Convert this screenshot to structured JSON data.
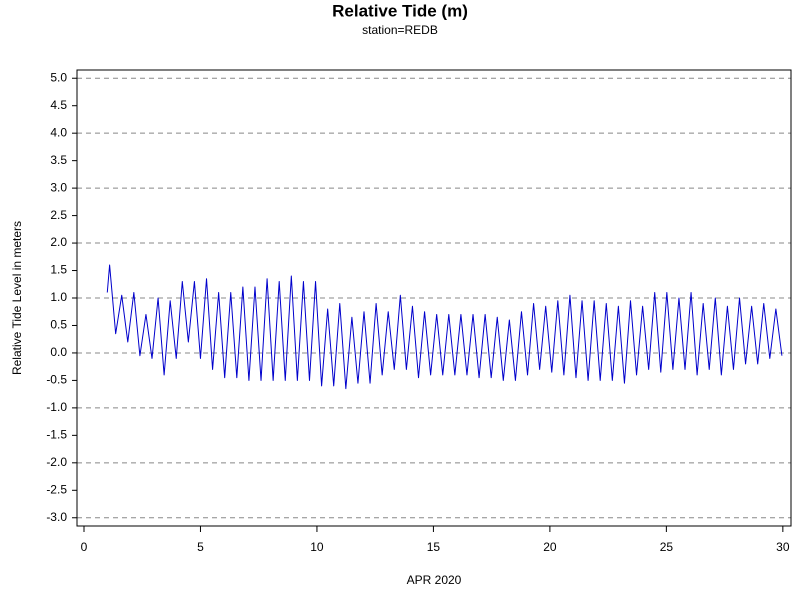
{
  "chart_data": {
    "type": "line",
    "title": "Relative Tide (m)",
    "subtitle": "station=REDB",
    "x_label": "APR 2020",
    "y_label": "Relative Tide Level in meters",
    "xlim": [
      -0.3,
      30.35
    ],
    "ylim": [
      -3.15,
      5.15
    ],
    "xticks": [
      0,
      5,
      10,
      15,
      20,
      25,
      30
    ],
    "yticks": [
      {
        "value": 5,
        "label": "5.0"
      },
      {
        "value": 4.5,
        "label": "4.5"
      },
      {
        "value": 4,
        "label": "4.0"
      },
      {
        "value": 3.5,
        "label": "3.5"
      },
      {
        "value": 3,
        "label": "3.0"
      },
      {
        "value": 2.5,
        "label": "2.5"
      },
      {
        "value": 2,
        "label": "2.0"
      },
      {
        "value": 1.5,
        "label": "1.5"
      },
      {
        "value": 1,
        "label": "1.0"
      },
      {
        "value": 0.5,
        "label": "0.5"
      },
      {
        "value": 0,
        "label": "0.0"
      },
      {
        "value": -0.5,
        "label": "-0.5"
      },
      {
        "value": -1,
        "label": "-1.0"
      },
      {
        "value": -1.5,
        "label": "-1.5"
      },
      {
        "value": -2,
        "label": "-2.0"
      },
      {
        "value": -2.5,
        "label": "-2.5"
      },
      {
        "value": -3,
        "label": "-3.0"
      }
    ],
    "grid": true,
    "color": "#0000cc",
    "x": [
      1.0,
      1.1,
      1.36,
      1.62,
      1.88,
      2.14,
      2.4,
      2.66,
      2.92,
      3.18,
      3.44,
      3.7,
      3.96,
      4.22,
      4.48,
      4.74,
      5.0,
      5.26,
      5.52,
      5.78,
      6.04,
      6.3,
      6.56,
      6.82,
      7.08,
      7.34,
      7.6,
      7.86,
      8.12,
      8.38,
      8.64,
      8.9,
      9.16,
      9.42,
      9.68,
      9.94,
      10.2,
      10.46,
      10.72,
      10.98,
      11.24,
      11.5,
      11.76,
      12.02,
      12.28,
      12.54,
      12.8,
      13.06,
      13.32,
      13.58,
      13.84,
      14.1,
      14.36,
      14.62,
      14.88,
      15.14,
      15.4,
      15.66,
      15.92,
      16.18,
      16.44,
      16.7,
      16.96,
      17.22,
      17.48,
      17.74,
      18.0,
      18.26,
      18.52,
      18.78,
      19.04,
      19.3,
      19.56,
      19.82,
      20.08,
      20.34,
      20.6,
      20.86,
      21.12,
      21.38,
      21.64,
      21.9,
      22.16,
      22.42,
      22.68,
      22.94,
      23.2,
      23.46,
      23.72,
      23.98,
      24.24,
      24.5,
      24.76,
      25.02,
      25.28,
      25.54,
      25.8,
      26.06,
      26.32,
      26.58,
      26.84,
      27.1,
      27.36,
      27.62,
      27.88,
      28.14,
      28.4,
      28.66,
      28.92,
      29.18,
      29.44,
      29.7,
      29.96
    ],
    "values": [
      1.1,
      1.6,
      0.35,
      1.05,
      0.2,
      1.1,
      -0.05,
      0.7,
      -0.1,
      1.0,
      -0.4,
      0.95,
      -0.1,
      1.3,
      0.2,
      1.3,
      -0.1,
      1.35,
      -0.3,
      1.1,
      -0.45,
      1.1,
      -0.45,
      1.2,
      -0.5,
      1.2,
      -0.5,
      1.35,
      -0.5,
      1.3,
      -0.5,
      1.4,
      -0.5,
      1.3,
      -0.5,
      1.3,
      -0.6,
      0.8,
      -0.6,
      0.9,
      -0.65,
      0.65,
      -0.55,
      0.75,
      -0.55,
      0.9,
      -0.4,
      0.75,
      -0.3,
      1.05,
      -0.3,
      0.85,
      -0.45,
      0.75,
      -0.4,
      0.7,
      -0.4,
      0.7,
      -0.4,
      0.7,
      -0.4,
      0.7,
      -0.45,
      0.7,
      -0.45,
      0.65,
      -0.5,
      0.6,
      -0.5,
      0.75,
      -0.4,
      0.9,
      -0.3,
      0.85,
      -0.35,
      0.95,
      -0.4,
      1.05,
      -0.45,
      0.95,
      -0.5,
      0.95,
      -0.5,
      0.9,
      -0.5,
      0.85,
      -0.55,
      0.95,
      -0.4,
      0.85,
      -0.3,
      1.1,
      -0.35,
      1.1,
      -0.3,
      1.0,
      -0.3,
      1.1,
      -0.4,
      0.9,
      -0.3,
      1.0,
      -0.4,
      0.85,
      -0.3,
      1.0,
      -0.2,
      0.85,
      -0.2,
      0.9,
      -0.1,
      0.8,
      -0.05
    ]
  }
}
